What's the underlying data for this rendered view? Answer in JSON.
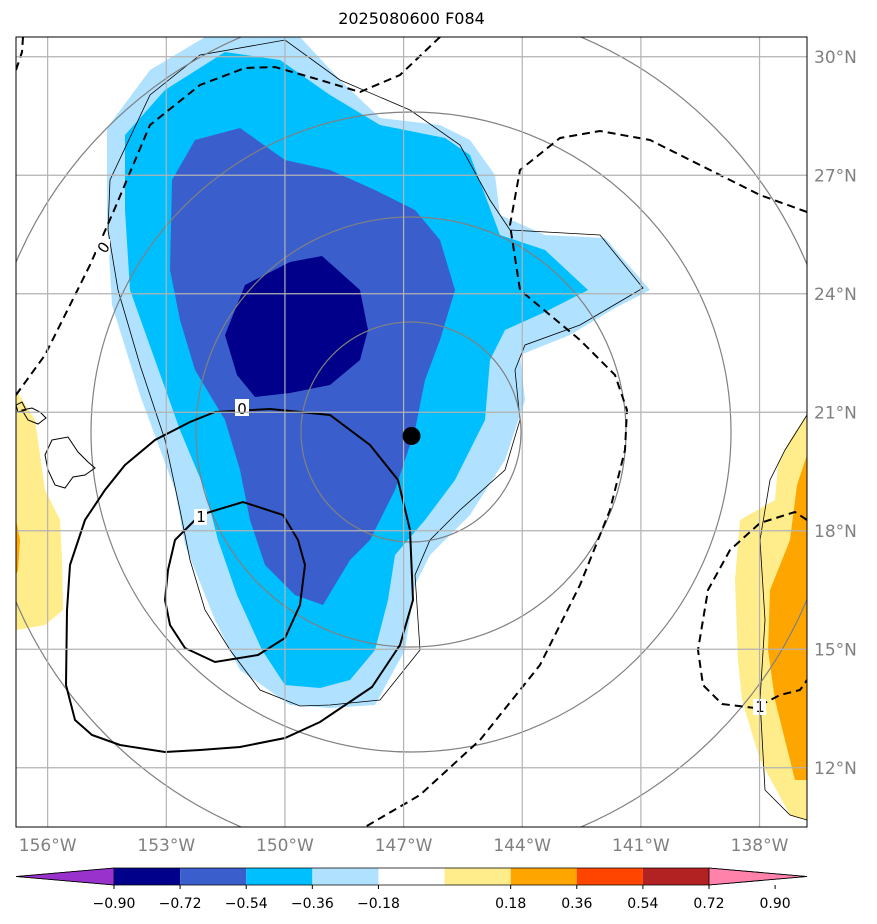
{
  "title": "2025080600 F084",
  "map": {
    "lon_ticks": [
      "156°W",
      "153°W",
      "150°W",
      "147°W",
      "144°W",
      "141°W",
      "138°W"
    ],
    "lat_ticks": [
      "30°N",
      "27°N",
      "24°N",
      "21°N",
      "18°N",
      "15°N",
      "12°N"
    ],
    "lon_range": [
      -156.8,
      -136.8
    ],
    "lat_range": [
      10.5,
      30.5
    ],
    "center_marker": {
      "lon": -146.8,
      "lat": 20.4
    },
    "grid": true,
    "contour_labels": [
      {
        "text": "0",
        "style": "solid"
      },
      {
        "text": "1",
        "style": "solid"
      },
      {
        "text": "0",
        "style": "dashed"
      },
      {
        "text": "1",
        "style": "dashed"
      }
    ]
  },
  "colorbar": {
    "labels": [
      "−0.90",
      "−0.72",
      "−0.54",
      "−0.36",
      "−0.18",
      "0.18",
      "0.36",
      "0.54",
      "0.72",
      "0.90"
    ],
    "colors": [
      "#9932cc",
      "#00008b",
      "#3a5fcd",
      "#00bfff",
      "#b0e2ff",
      "#ffffff",
      "#ffec8b",
      "#ffa500",
      "#ff4500",
      "#b22222",
      "#ff82ab"
    ]
  },
  "colors": {
    "ice_light": "#b0e2ff",
    "ice_mid": "#00bfff",
    "ice_deep": "#3a5fcd",
    "ice_darkest": "#00008b",
    "warm_light": "#ffec8b",
    "warm_mid": "#ffa500",
    "grid": "#b3b3b3",
    "ring": "#808080",
    "tick_text": "#808080"
  }
}
